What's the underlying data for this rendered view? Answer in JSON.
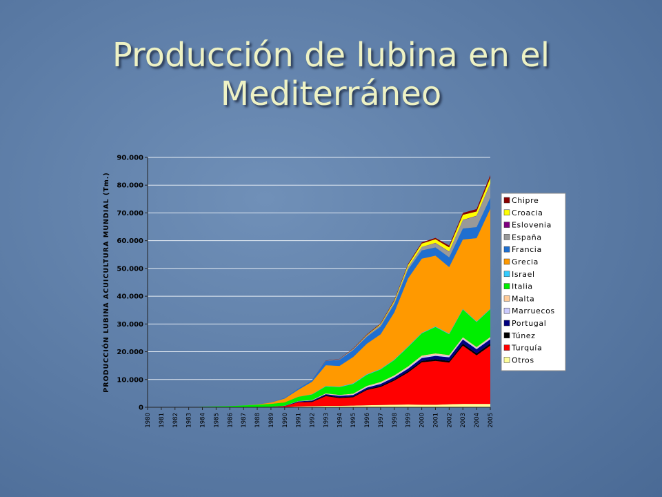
{
  "chart_data": {
    "type": "stacked-area",
    "title": "Producción de lubina en el Mediterráneo",
    "y_label": "PRODUCCIÓN LUBINA ACUICULTURA MUNDIAL (Tm.)",
    "categories": [
      "1980",
      "1981",
      "1982",
      "1983",
      "1984",
      "1985",
      "1986",
      "1987",
      "1988",
      "1989",
      "1990",
      "1991",
      "1992",
      "1993",
      "1994",
      "1995",
      "1996",
      "1997",
      "1998",
      "1999",
      "2000",
      "2001",
      "2002",
      "2003",
      "2004",
      "2005"
    ],
    "ylim": [
      0,
      90000
    ],
    "yticks": [
      0,
      {
        "value": 10000,
        "label": "10.000"
      },
      {
        "value": 20000,
        "label": "20.000"
      },
      {
        "value": 30000,
        "label": "30.000"
      },
      {
        "value": 40000,
        "label": "40.000"
      },
      {
        "value": 50000,
        "label": "50.000"
      },
      {
        "value": 60000,
        "label": "60.000"
      },
      {
        "value": 70000,
        "label": "70.000"
      },
      {
        "value": 80000,
        "label": "80.000"
      },
      {
        "value": 90000,
        "label": "90.000"
      }
    ],
    "grid": true,
    "legend": "right",
    "series": [
      {
        "name": "Chipre",
        "color": "#8b0000",
        "values": [
          0,
          0,
          0,
          0,
          0,
          0,
          0,
          0,
          0,
          0,
          0,
          0,
          0,
          100,
          100,
          150,
          200,
          250,
          300,
          350,
          400,
          500,
          600,
          700,
          900,
          1000
        ]
      },
      {
        "name": "Croacia",
        "color": "#ffff00",
        "values": [
          0,
          0,
          0,
          0,
          0,
          0,
          0,
          0,
          0,
          0,
          0,
          0,
          0,
          0,
          0,
          100,
          200,
          300,
          500,
          800,
          1200,
          1300,
          1500,
          1800,
          1500,
          2000
        ]
      },
      {
        "name": "Eslovenia",
        "color": "#800080",
        "values": [
          0,
          0,
          0,
          0,
          0,
          0,
          0,
          0,
          0,
          0,
          0,
          0,
          0,
          0,
          0,
          50,
          50,
          50,
          50,
          50,
          50,
          100,
          100,
          100,
          100,
          100
        ]
      },
      {
        "name": "España",
        "color": "#999999",
        "values": [
          0,
          0,
          0,
          0,
          0,
          0,
          0,
          0,
          0,
          0,
          0,
          0,
          0,
          100,
          200,
          300,
          400,
          500,
          600,
          800,
          1200,
          1500,
          2000,
          3000,
          4000,
          5000
        ]
      },
      {
        "name": "Francia",
        "color": "#1f6fd0",
        "values": [
          0,
          0,
          0,
          0,
          0,
          0,
          0,
          0,
          0,
          50,
          200,
          400,
          600,
          1500,
          2200,
          2500,
          2500,
          2800,
          3000,
          3200,
          3000,
          3000,
          3500,
          4000,
          4000,
          4000
        ]
      },
      {
        "name": "Grecia",
        "color": "#ff9900",
        "values": [
          0,
          0,
          0,
          0,
          0,
          0,
          0,
          0,
          100,
          500,
          1400,
          2500,
          4500,
          7500,
          7500,
          9500,
          11000,
          12500,
          17000,
          24500,
          26700,
          25500,
          24000,
          25000,
          30000,
          36000
        ]
      },
      {
        "name": "Israel",
        "color": "#33ccff",
        "values": [
          0,
          0,
          0,
          0,
          0,
          0,
          0,
          0,
          0,
          0,
          0,
          50,
          100,
          150,
          150,
          200,
          200,
          200,
          200,
          200,
          200,
          200,
          200,
          200,
          200,
          200
        ]
      },
      {
        "name": "Italia",
        "color": "#00ee00",
        "values": [
          0,
          0,
          0,
          0,
          200,
          300,
          400,
          600,
          800,
          1000,
          1200,
          1500,
          2000,
          2500,
          2800,
          3500,
          4000,
          4500,
          5500,
          7000,
          8000,
          9500,
          7500,
          10000,
          9000,
          10000
        ]
      },
      {
        "name": "Malta",
        "color": "#ffcc99",
        "values": [
          0,
          0,
          0,
          0,
          0,
          0,
          0,
          0,
          0,
          0,
          0,
          50,
          100,
          200,
          200,
          300,
          300,
          400,
          400,
          400,
          500,
          500,
          400,
          400,
          400,
          400
        ]
      },
      {
        "name": "Marruecos",
        "color": "#ccccff",
        "values": [
          0,
          0,
          0,
          0,
          0,
          0,
          0,
          0,
          0,
          0,
          50,
          100,
          100,
          100,
          150,
          200,
          300,
          300,
          300,
          400,
          400,
          400,
          400,
          400,
          400,
          400
        ]
      },
      {
        "name": "Portugal",
        "color": "#000080",
        "values": [
          0,
          0,
          0,
          0,
          0,
          0,
          0,
          0,
          0,
          50,
          100,
          200,
          300,
          400,
          500,
          500,
          600,
          700,
          800,
          900,
          1000,
          1200,
          1300,
          1500,
          1500,
          1500
        ]
      },
      {
        "name": "Túnez",
        "color": "#000000",
        "values": [
          0,
          0,
          0,
          0,
          0,
          0,
          0,
          0,
          0,
          0,
          0,
          100,
          200,
          300,
          300,
          300,
          300,
          400,
          400,
          500,
          500,
          600,
          600,
          700,
          700,
          800
        ]
      },
      {
        "name": "Turquía",
        "color": "#ff0000",
        "values": [
          0,
          0,
          0,
          0,
          0,
          0,
          0,
          50,
          100,
          150,
          300,
          1500,
          1500,
          3500,
          2800,
          3000,
          5500,
          6500,
          8700,
          11500,
          15300,
          15800,
          15000,
          21000,
          17500,
          21000
        ]
      },
      {
        "name": "Otros",
        "color": "#ffff99",
        "values": [
          0,
          0,
          0,
          0,
          0,
          0,
          0,
          0,
          0,
          0,
          100,
          300,
          400,
          500,
          500,
          600,
          700,
          800,
          900,
          1000,
          900,
          900,
          1100,
          1200,
          1200,
          1200
        ]
      }
    ]
  }
}
